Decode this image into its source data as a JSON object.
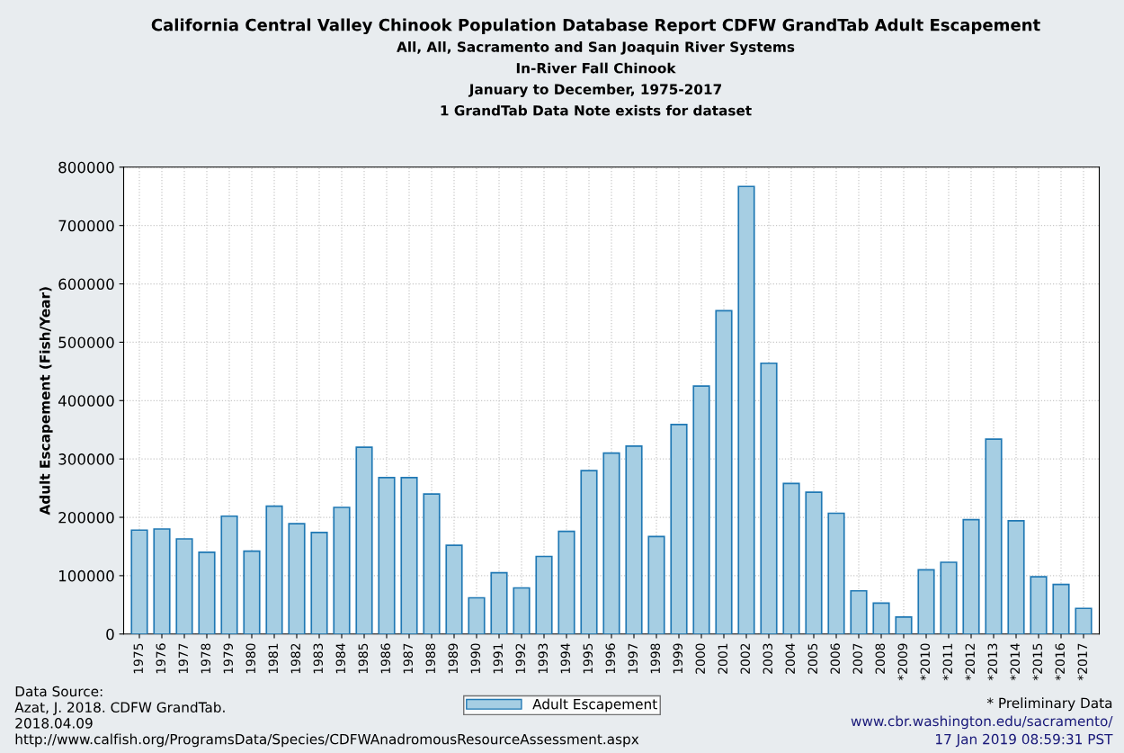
{
  "chart_data": {
    "type": "bar",
    "title": "California Central Valley Chinook Population Database Report CDFW GrandTab Adult Escapement",
    "subtitle": "All, All, Sacramento and San Joaquin River Systems\nIn-River Fall Chinook\nJanuary to December, 1975-2017\n1 GrandTab Data Note exists for dataset",
    "ylabel": "Adult Escapement (Fish/Year)",
    "categories": [
      "1975",
      "1976",
      "1977",
      "1978",
      "1979",
      "1980",
      "1981",
      "1982",
      "1983",
      "1984",
      "1985",
      "1986",
      "1987",
      "1988",
      "1989",
      "1990",
      "1991",
      "1992",
      "1993",
      "1994",
      "1995",
      "1996",
      "1997",
      "1998",
      "1999",
      "2000",
      "2001",
      "2002",
      "2003",
      "2004",
      "2005",
      "2006",
      "2007",
      "2008",
      "*2009",
      "*2010",
      "*2011",
      "*2012",
      "*2013",
      "*2014",
      "*2015",
      "*2016",
      "*2017"
    ],
    "series": [
      {
        "name": "Adult Escapement",
        "color": "#a6cee3",
        "values": [
          178000,
          180000,
          163000,
          140000,
          202000,
          142000,
          219000,
          189000,
          174000,
          217000,
          320000,
          268000,
          268000,
          240000,
          152000,
          62000,
          105000,
          79000,
          133000,
          176000,
          280000,
          310000,
          322000,
          167000,
          359000,
          425000,
          554000,
          767000,
          464000,
          258000,
          243000,
          207000,
          74000,
          53000,
          29000,
          110000,
          123000,
          196000,
          334000,
          194000,
          98000,
          85000,
          44000
        ]
      }
    ],
    "ylim": [
      0,
      800000
    ],
    "yticks": [
      0,
      100000,
      200000,
      300000,
      400000,
      500000,
      600000,
      700000,
      800000
    ],
    "grid": true,
    "legend": "bottom",
    "annotations": [
      "Data Source:\nAzat, J. 2018. CDFW GrandTab.\n2018.04.09\nhttp://www.calfish.org/ProgramsData/Species/CDFWAnadromousResourceAssessment.aspx",
      "* Preliminary Data",
      "www.cbr.washington.edu/sacramento/",
      "17 Jan 2019 08:59:31 PST"
    ]
  }
}
